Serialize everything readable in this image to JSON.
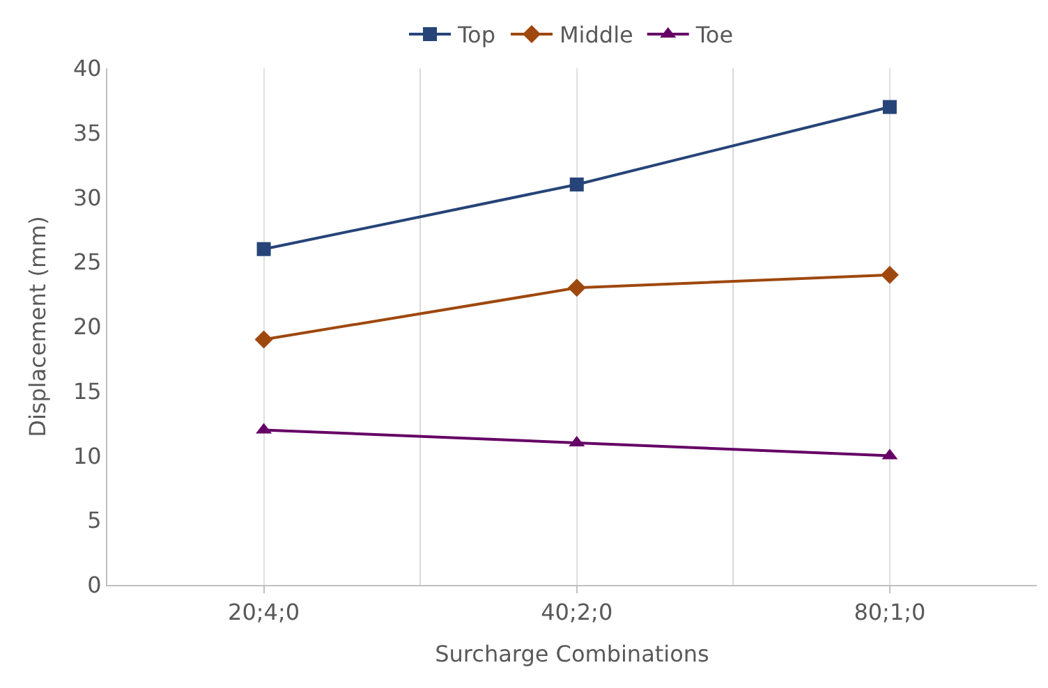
{
  "chart_data": {
    "type": "line",
    "xlabel": "Surcharge Combinations",
    "ylabel": "Displacement (mm)",
    "categories": [
      "20;4;0",
      "40;2;0",
      "80;1;0"
    ],
    "series": [
      {
        "name": "Top",
        "color": "#264478",
        "marker": "square",
        "values": [
          26,
          31,
          37
        ]
      },
      {
        "name": "Middle",
        "color": "#9e480e",
        "marker": "diamond",
        "values": [
          19,
          23,
          24
        ]
      },
      {
        "name": "Toe",
        "color": "#660066",
        "marker": "triangle",
        "values": [
          12,
          11,
          10
        ]
      }
    ],
    "ylim": [
      0,
      40
    ],
    "yticks": [
      0,
      5,
      10,
      15,
      20,
      25,
      30,
      35,
      40
    ],
    "grid": "x",
    "legend": "top",
    "line_style": "solid"
  }
}
